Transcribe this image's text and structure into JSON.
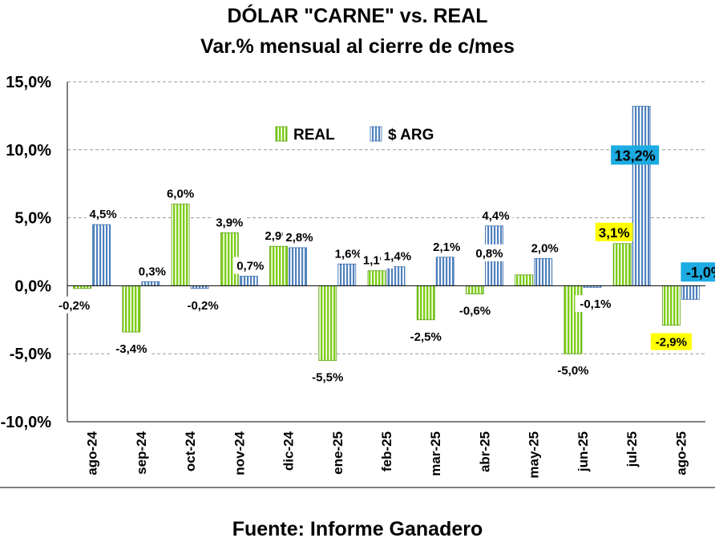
{
  "header": {
    "title": "DÓLAR \"CARNE\" vs. REAL",
    "subtitle": "Var.% mensual al cierre de c/mes"
  },
  "footer": {
    "source": "Fuente: Informe Ganadero"
  },
  "chart_data": {
    "type": "bar",
    "title": "DÓLAR \"CARNE\" vs. REAL",
    "subtitle": "Var.% mensual al cierre de c/mes",
    "categories": [
      "ago-24",
      "sep-24",
      "oct-24",
      "nov-24",
      "dic-24",
      "ene-25",
      "feb-25",
      "mar-25",
      "abr-25",
      "may-25",
      "jun-25",
      "jul-25",
      "ago-25"
    ],
    "ylim": [
      -10,
      15
    ],
    "yticks": [
      -10,
      -5,
      0,
      5,
      10,
      15
    ],
    "ytick_labels": [
      "-10,0%",
      "-5,0%",
      "0,0%",
      "5,0%",
      "10,0%",
      "15,0%"
    ],
    "grid": true,
    "legend_position": "top-center",
    "series": [
      {
        "name": "REAL",
        "color": "#7ccd16",
        "values": [
          -0.2,
          -3.4,
          6.0,
          3.9,
          2.9,
          -5.5,
          1.1,
          -2.5,
          -0.6,
          0.8,
          -5.0,
          3.1,
          -2.9
        ],
        "labels": [
          "-0,2%",
          "-3,4%",
          "6,0%",
          "3,9%",
          "2,9%",
          "-5,5%",
          "1,1%",
          "-2,5%",
          "-0,6%",
          "",
          "-5,0%",
          "3,1%",
          "-2,9%"
        ]
      },
      {
        "name": "$ ARG",
        "color": "#4f81bd",
        "values": [
          4.5,
          0.3,
          -0.2,
          0.7,
          2.8,
          1.6,
          1.4,
          2.1,
          4.4,
          2.0,
          -0.1,
          13.2,
          -1.0
        ],
        "labels": [
          "4,5%",
          "0,3%",
          "-0,2%",
          "0,7%",
          "2,8%",
          "1,6%",
          "1,4%",
          "2,1%",
          "4,4%",
          "2,0%",
          "-0,1%",
          "13,2%",
          "-1,0%"
        ]
      }
    ],
    "extra_labels": [
      {
        "category_index": 8,
        "text": "0,8%"
      }
    ],
    "highlights": {
      "real_color": "#ffff00",
      "arg_color": "#1cabe2"
    }
  }
}
